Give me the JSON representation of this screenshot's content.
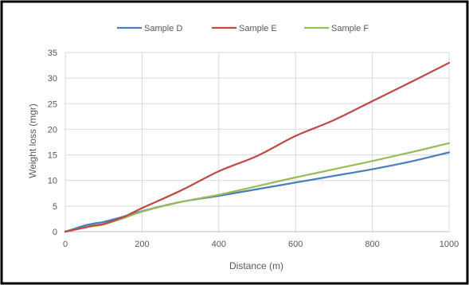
{
  "chart_data": {
    "type": "line",
    "title": "",
    "xlabel": "Distance (m)",
    "ylabel": "Weight loss (mgr)",
    "xlim": [
      0,
      1000
    ],
    "ylim": [
      0,
      35
    ],
    "xticks": [
      0,
      200,
      400,
      600,
      800,
      1000
    ],
    "yticks": [
      0,
      5,
      10,
      15,
      20,
      25,
      30,
      35
    ],
    "grid": true,
    "legend_position": "top",
    "series": [
      {
        "name": "Sample D",
        "color": "#4A7EBB",
        "x": [
          0,
          25,
          50,
          75,
          100,
          150,
          200,
          300,
          400,
          500,
          600,
          700,
          800,
          900,
          1000
        ],
        "y": [
          0,
          0.6,
          1.2,
          1.6,
          1.9,
          2.9,
          4.0,
          5.8,
          7.0,
          8.3,
          9.6,
          10.9,
          12.2,
          13.7,
          15.5
        ]
      },
      {
        "name": "Sample E",
        "color": "#BE4B48",
        "x": [
          0,
          25,
          50,
          75,
          100,
          150,
          200,
          300,
          400,
          500,
          600,
          700,
          800,
          900,
          1000
        ],
        "y": [
          0,
          0.4,
          0.8,
          1.2,
          1.5,
          2.8,
          4.6,
          8.0,
          11.8,
          14.8,
          18.7,
          21.8,
          25.5,
          29.2,
          33.0
        ]
      },
      {
        "name": "Sample F",
        "color": "#9BBB59",
        "x": [
          0,
          25,
          50,
          75,
          100,
          150,
          200,
          300,
          400,
          500,
          600,
          700,
          800,
          900,
          1000
        ],
        "y": [
          0,
          0.4,
          0.8,
          1.1,
          1.4,
          2.6,
          3.9,
          5.8,
          7.2,
          8.9,
          10.6,
          12.2,
          13.8,
          15.5,
          17.3
        ]
      }
    ]
  }
}
